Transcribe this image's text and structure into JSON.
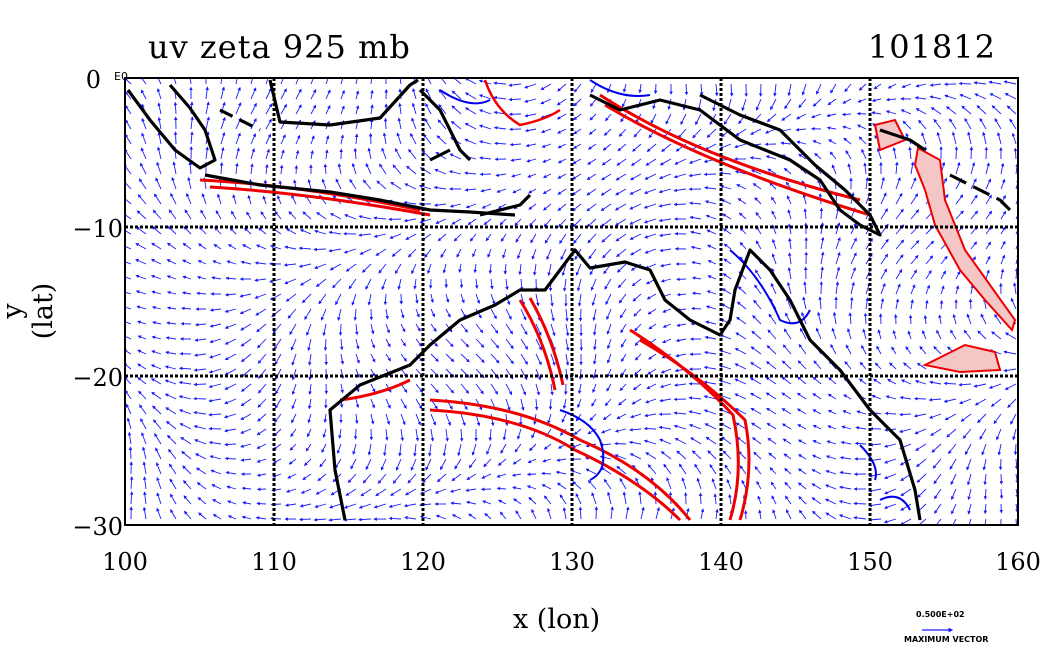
{
  "title_left": "uv zeta 925 mb",
  "title_right": "101812",
  "xlabel": "x (lon)",
  "ylabel": "y (lat)",
  "x_ticks": [
    "100",
    "110",
    "120",
    "130",
    "140",
    "150",
    "160"
  ],
  "y_ticks": [
    "0",
    "−10",
    "−20",
    "−30"
  ],
  "y0_exponent": "E0",
  "legend": {
    "scale": "0.500E+02",
    "label": "MAXIMUM VECTOR"
  },
  "colors": {
    "coast": "#000000",
    "grid": "#000000",
    "vectors": "#1a1aff",
    "positive": "#ee0000",
    "negative": "#0000ee",
    "fill": "#f4c6c6"
  },
  "map_extent": {
    "lon": [
      100,
      160
    ],
    "lat": [
      -30,
      0
    ]
  }
}
